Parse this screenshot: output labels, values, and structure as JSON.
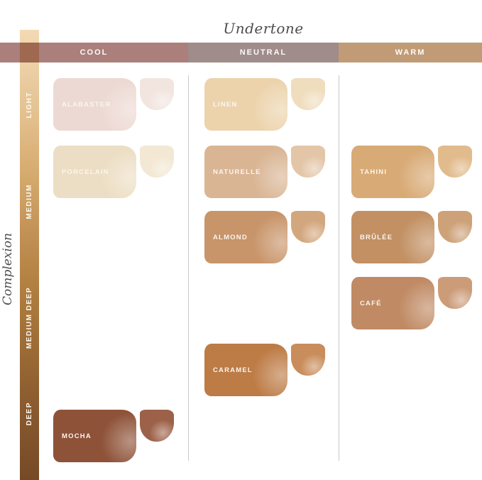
{
  "titles": {
    "undertone": "Undertone",
    "complexion": "Complexion"
  },
  "header": {
    "segments": [
      {
        "label": "COOL",
        "color": "#ab7f7c"
      },
      {
        "label": "NEUTRAL",
        "color": "#9f8c8b"
      },
      {
        "label": "WARM",
        "color": "#c09b76"
      }
    ]
  },
  "complexion_axis": {
    "labels": [
      "LIGHT",
      "MEDIUM",
      "MEDIUM DEEP",
      "DEEP"
    ]
  },
  "chart_data": {
    "type": "table",
    "title": "Undertone",
    "xlabel": "Undertone",
    "ylabel": "Complexion",
    "columns": [
      "COOL",
      "NEUTRAL",
      "WARM"
    ],
    "rows": [
      "LIGHT",
      "MEDIUM",
      "MEDIUM",
      "MEDIUM DEEP",
      "MEDIUM DEEP",
      "DEEP"
    ],
    "shades": [
      {
        "name": "ALABASTER",
        "color": "#edd9d3",
        "drop_color": "#f2e5df",
        "undertone": "COOL",
        "complexion": "LIGHT",
        "col": 0,
        "row": 0
      },
      {
        "name": "LINEN",
        "color": "#ecd3ac",
        "drop_color": "#f0ddbe",
        "undertone": "NEUTRAL",
        "complexion": "LIGHT",
        "col": 1,
        "row": 0
      },
      {
        "name": "PORCELAIN",
        "color": "#ecdec4",
        "drop_color": "#f2e8d3",
        "undertone": "COOL",
        "complexion": "MEDIUM",
        "col": 0,
        "row": 1
      },
      {
        "name": "NATURELLE",
        "color": "#d9b594",
        "drop_color": "#e3c6a8",
        "undertone": "NEUTRAL",
        "complexion": "MEDIUM",
        "col": 1,
        "row": 1
      },
      {
        "name": "TAHINI",
        "color": "#d8aa75",
        "drop_color": "#e1bb8c",
        "undertone": "WARM",
        "complexion": "MEDIUM",
        "col": 2,
        "row": 1
      },
      {
        "name": "ALMOND",
        "color": "#c89469",
        "drop_color": "#d3a77e",
        "undertone": "NEUTRAL",
        "complexion": "MEDIUM",
        "col": 1,
        "row": 2
      },
      {
        "name": "BRÛLÉE",
        "color": "#c29063",
        "drop_color": "#cda279",
        "undertone": "WARM",
        "complexion": "MEDIUM",
        "col": 2,
        "row": 2
      },
      {
        "name": "CAFÉ",
        "color": "#c08a64",
        "drop_color": "#cc9c79",
        "undertone": "WARM",
        "complexion": "MEDIUM DEEP",
        "col": 2,
        "row": 3
      },
      {
        "name": "CARAMEL",
        "color": "#bd7b45",
        "drop_color": "#c88d5b",
        "undertone": "NEUTRAL",
        "complexion": "MEDIUM DEEP",
        "col": 1,
        "row": 4
      },
      {
        "name": "MOCHA",
        "color": "#8e5238",
        "drop_color": "#9c6148",
        "undertone": "COOL",
        "complexion": "DEEP",
        "col": 0,
        "row": 5
      }
    ]
  }
}
